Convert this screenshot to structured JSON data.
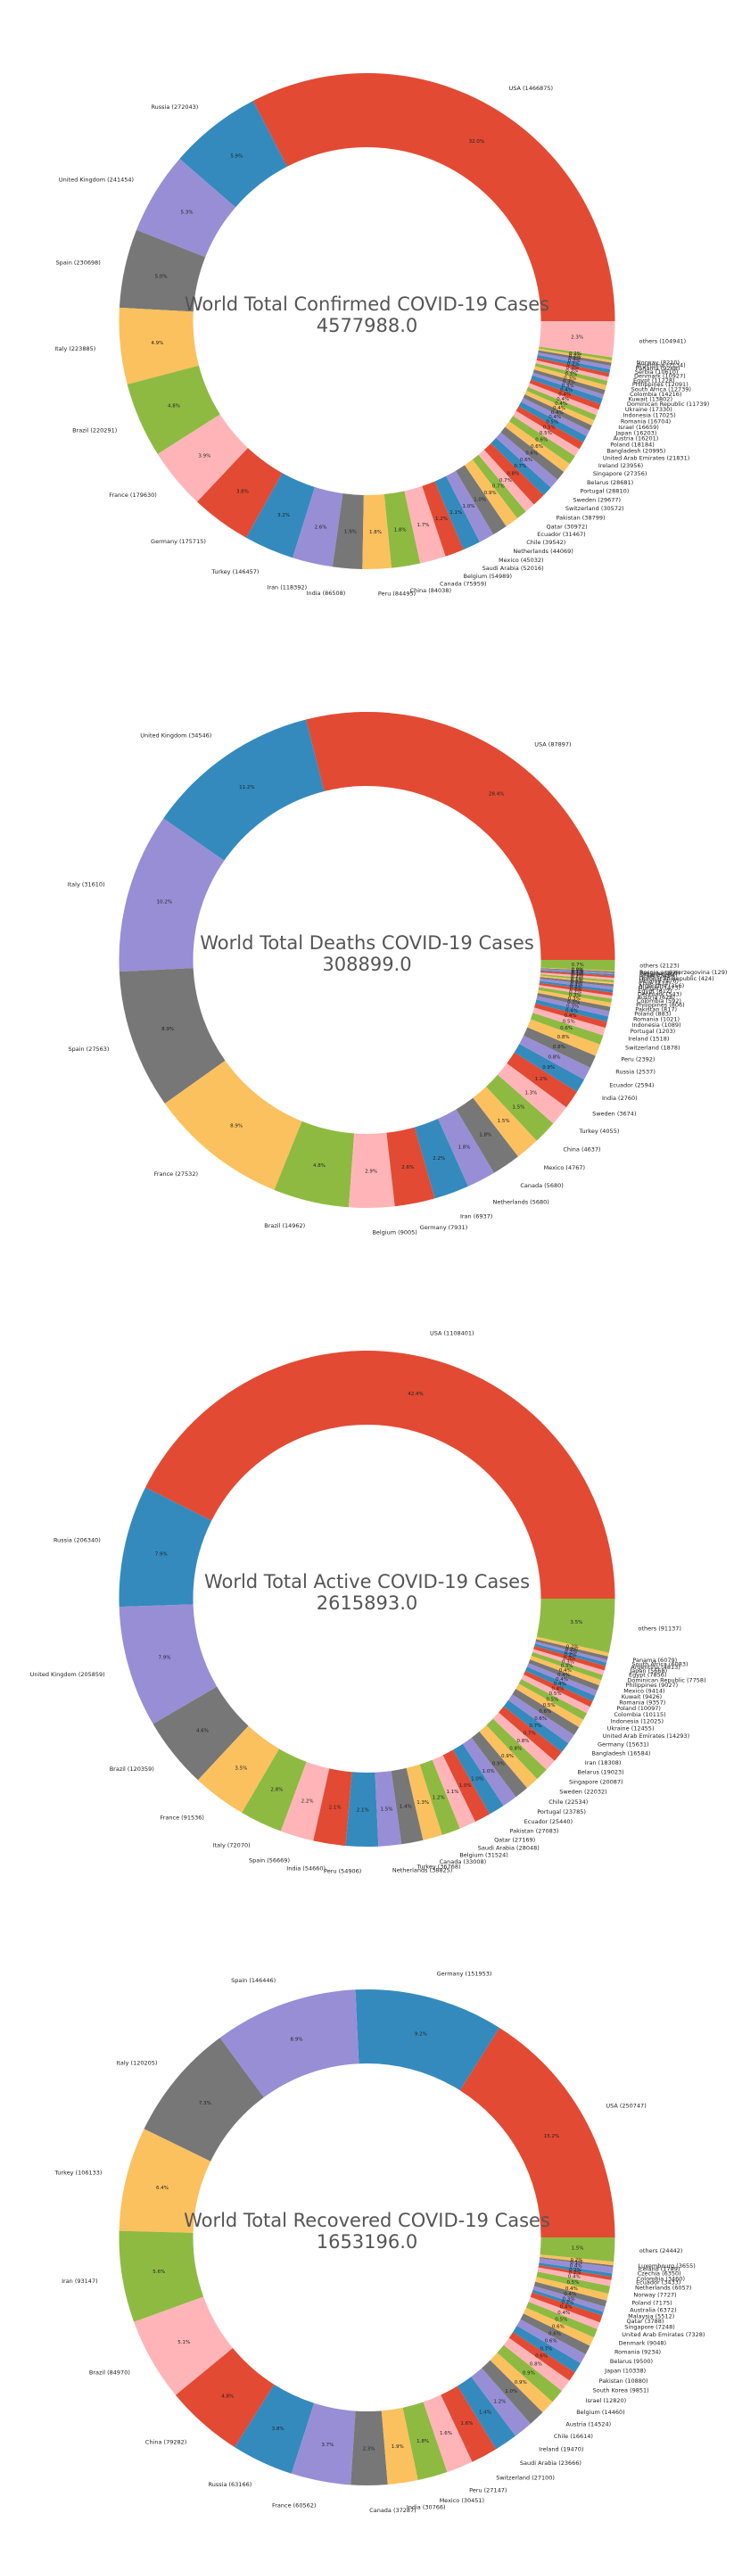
{
  "chart_data": [
    {
      "type": "pie",
      "donut": true,
      "title": "World Total Confirmed COVID-19 Cases",
      "total": "4577988.0",
      "slices": [
        {
          "label": "USA (1466875)",
          "value": 1466875,
          "pct": "32.0%"
        },
        {
          "label": "Russia (272043)",
          "value": 272043,
          "pct": "5.9%"
        },
        {
          "label": "United Kingdom (241454)",
          "value": 241454,
          "pct": "5.3%"
        },
        {
          "label": "Spain (230698)",
          "value": 230698,
          "pct": "5.0%"
        },
        {
          "label": "Italy (223885)",
          "value": 223885,
          "pct": "4.9%"
        },
        {
          "label": "Brazil (220291)",
          "value": 220291,
          "pct": "4.8%"
        },
        {
          "label": "France (179630)",
          "value": 179630,
          "pct": "3.9%"
        },
        {
          "label": "Germany (175715)",
          "value": 175715,
          "pct": "3.8%"
        },
        {
          "label": "Turkey (146457)",
          "value": 146457,
          "pct": "3.2%"
        },
        {
          "label": "Iran (118392)",
          "value": 118392,
          "pct": "2.6%"
        },
        {
          "label": "India (86508)",
          "value": 86508,
          "pct": "1.9%"
        },
        {
          "label": "Peru (84495)",
          "value": 84495,
          "pct": "1.8%"
        },
        {
          "label": "China (84038)",
          "value": 84038,
          "pct": "1.8%"
        },
        {
          "label": "Canada (75959)",
          "value": 75959,
          "pct": "1.7%"
        },
        {
          "label": "Belgium (54989)",
          "value": 54989,
          "pct": "1.2%"
        },
        {
          "label": "Saudi Arabia (52016)",
          "value": 52016,
          "pct": "1.1%"
        },
        {
          "label": "Mexico (45032)",
          "value": 45032,
          "pct": "1.0%"
        },
        {
          "label": "Netherlands (44069)",
          "value": 44069,
          "pct": "1.0%"
        },
        {
          "label": "Chile (39542)",
          "value": 39542,
          "pct": "0.9%"
        },
        {
          "label": "Ecuador (31467)",
          "value": 31467,
          "pct": "0.7%"
        },
        {
          "label": "Qatar (30972)",
          "value": 30972,
          "pct": "0.7%"
        },
        {
          "label": "Pakistan (38799)",
          "value": 38799,
          "pct": "0.8%"
        },
        {
          "label": "Switzerland (30572)",
          "value": 30572,
          "pct": "0.7%"
        },
        {
          "label": "Sweden (29677)",
          "value": 29677,
          "pct": "0.6%"
        },
        {
          "label": "Portugal (28810)",
          "value": 28810,
          "pct": "0.6%"
        },
        {
          "label": "Belarus (28681)",
          "value": 28681,
          "pct": "0.6%"
        },
        {
          "label": "Singapore (27356)",
          "value": 27356,
          "pct": "0.6%"
        },
        {
          "label": "Ireland (23956)",
          "value": 23956,
          "pct": "0.5%"
        },
        {
          "label": "United Arab Emirates (21831)",
          "value": 21831,
          "pct": "0.5%"
        },
        {
          "label": "Bangladesh (20995)",
          "value": 20995,
          "pct": "0.5%"
        },
        {
          "label": "Poland (18184)",
          "value": 18184,
          "pct": "0.4%"
        },
        {
          "label": "Austria (16201)",
          "value": 16201,
          "pct": "0.4%"
        },
        {
          "label": "Japan (16203)",
          "value": 16203,
          "pct": "0.4%"
        },
        {
          "label": "Israel (16659)",
          "value": 16659,
          "pct": "0.4%"
        },
        {
          "label": "Romania (16704)",
          "value": 16704,
          "pct": "0.4%"
        },
        {
          "label": "Indonesia (17025)",
          "value": 17025,
          "pct": "0.4%"
        },
        {
          "label": "Ukraine (17330)",
          "value": 17330,
          "pct": "0.4%"
        },
        {
          "label": "Dominican Republic (11739)",
          "value": 11739,
          "pct": "0.3%"
        },
        {
          "label": "Kuwait (13802)",
          "value": 13802,
          "pct": "0.3%"
        },
        {
          "label": "Colombia (14216)",
          "value": 14216,
          "pct": "0.3%"
        },
        {
          "label": "South Africa (12739)",
          "value": 12739,
          "pct": "0.3%"
        },
        {
          "label": "Philippines (12091)",
          "value": 12091,
          "pct": "0.3%"
        },
        {
          "label": "Egypt (11228)",
          "value": 11228,
          "pct": "0.2%"
        },
        {
          "label": "Denmark (10927)",
          "value": 10927,
          "pct": "0.2%"
        },
        {
          "label": "Serbia (10610)",
          "value": 10610,
          "pct": "0.2%"
        },
        {
          "label": "Panama (9268)",
          "value": 9268,
          "pct": "0.2%"
        },
        {
          "label": "Argentina (7134)",
          "value": 7134,
          "pct": "0.2%"
        },
        {
          "label": "Norway (8210)",
          "value": 8210,
          "pct": "0.2%"
        },
        {
          "label": "others (104941)",
          "value": 104941,
          "pct": "2.3%"
        }
      ]
    },
    {
      "type": "pie",
      "donut": true,
      "title": "World Total Deaths COVID-19 Cases",
      "total": "308899.0",
      "slices": [
        {
          "label": "USA (87897)",
          "value": 87897,
          "pct": "28.4%"
        },
        {
          "label": "United Kingdom (34546)",
          "value": 34546,
          "pct": "11.2%"
        },
        {
          "label": "Italy (31610)",
          "value": 31610,
          "pct": "10.2%"
        },
        {
          "label": "Spain (27563)",
          "value": 27563,
          "pct": "8.9%"
        },
        {
          "label": "France (27532)",
          "value": 27532,
          "pct": "8.9%"
        },
        {
          "label": "Brazil (14962)",
          "value": 14962,
          "pct": "4.8%"
        },
        {
          "label": "Belgium (9005)",
          "value": 9005,
          "pct": "2.9%"
        },
        {
          "label": "Germany (7931)",
          "value": 7931,
          "pct": "2.6%"
        },
        {
          "label": "Iran (6937)",
          "value": 6937,
          "pct": "2.2%"
        },
        {
          "label": "Netherlands (5680)",
          "value": 5680,
          "pct": "1.8%"
        },
        {
          "label": "Canada (5680)",
          "value": 5680,
          "pct": "1.8%"
        },
        {
          "label": "Mexico (4767)",
          "value": 4767,
          "pct": "1.5%"
        },
        {
          "label": "China (4637)",
          "value": 4637,
          "pct": "1.5%"
        },
        {
          "label": "Turkey (4055)",
          "value": 4055,
          "pct": "1.3%"
        },
        {
          "label": "Sweden (3674)",
          "value": 3674,
          "pct": "1.2%"
        },
        {
          "label": "India (2760)",
          "value": 2760,
          "pct": "0.9%"
        },
        {
          "label": "Ecuador (2594)",
          "value": 2594,
          "pct": "0.8%"
        },
        {
          "label": "Russia (2537)",
          "value": 2537,
          "pct": "0.8%"
        },
        {
          "label": "Peru (2392)",
          "value": 2392,
          "pct": "0.8%"
        },
        {
          "label": "Switzerland (1878)",
          "value": 1878,
          "pct": "0.6%"
        },
        {
          "label": "Ireland (1518)",
          "value": 1518,
          "pct": "0.5%"
        },
        {
          "label": "Portugal (1203)",
          "value": 1203,
          "pct": "0.4%"
        },
        {
          "label": "Indonesia (1089)",
          "value": 1089,
          "pct": "0.4%"
        },
        {
          "label": "Romania (1021)",
          "value": 1021,
          "pct": "0.3%"
        },
        {
          "label": "Poland (883)",
          "value": 883,
          "pct": "0.3%"
        },
        {
          "label": "Pakistan (817)",
          "value": 817,
          "pct": "0.3%"
        },
        {
          "label": "Philippines (806)",
          "value": 806,
          "pct": "0.3%"
        },
        {
          "label": "Colombia (592)",
          "value": 592,
          "pct": "0.2%"
        },
        {
          "label": "Austria (628)",
          "value": 628,
          "pct": "0.2%"
        },
        {
          "label": "Denmark (543)",
          "value": 543,
          "pct": "0.2%"
        },
        {
          "label": "Egypt (612)",
          "value": 612,
          "pct": "0.2%"
        },
        {
          "label": "Hungary (473)",
          "value": 473,
          "pct": "0.2%"
        },
        {
          "label": "Argentina (356)",
          "value": 356,
          "pct": "0.1%"
        },
        {
          "label": "Chile (414)",
          "value": 414,
          "pct": "0.1%"
        },
        {
          "label": "Ukraine (476)",
          "value": 476,
          "pct": "0.2%"
        },
        {
          "label": "Dominican Republic (424)",
          "value": 424,
          "pct": "0.1%"
        },
        {
          "label": "Israel (264)",
          "value": 264,
          "pct": "0.1%"
        },
        {
          "label": "Finland (284)",
          "value": 284,
          "pct": "0.1%"
        },
        {
          "label": "Panama (269)",
          "value": 269,
          "pct": "0.1%"
        },
        {
          "label": "Bosnia and Herzegovina (129)",
          "value": 129,
          "pct": "0.0%"
        },
        {
          "label": "others (2123)",
          "value": 2123,
          "pct": "0.7%"
        }
      ]
    },
    {
      "type": "pie",
      "donut": true,
      "title": "World Total Active COVID-19 Cases",
      "total": "2615893.0",
      "slices": [
        {
          "label": "USA (1108401)",
          "value": 1108401,
          "pct": "42.4%"
        },
        {
          "label": "Russia (206340)",
          "value": 206340,
          "pct": "7.9%"
        },
        {
          "label": "United Kingdom (205859)",
          "value": 205859,
          "pct": "7.9%"
        },
        {
          "label": "Brazil (120359)",
          "value": 120359,
          "pct": "4.6%"
        },
        {
          "label": "France (91536)",
          "value": 91536,
          "pct": "3.5%"
        },
        {
          "label": "Italy (72070)",
          "value": 72070,
          "pct": "2.8%"
        },
        {
          "label": "Spain (56669)",
          "value": 56669,
          "pct": "2.2%"
        },
        {
          "label": "India (54660)",
          "value": 54660,
          "pct": "2.1%"
        },
        {
          "label": "Peru (54906)",
          "value": 54906,
          "pct": "2.1%"
        },
        {
          "label": "Netherlands (38825)",
          "value": 38825,
          "pct": "1.5%"
        },
        {
          "label": "Turkey (36768)",
          "value": 36768,
          "pct": "1.4%"
        },
        {
          "label": "Canada (33008)",
          "value": 33008,
          "pct": "1.3%"
        },
        {
          "label": "Belgium (31524)",
          "value": 31524,
          "pct": "1.2%"
        },
        {
          "label": "Saudi Arabia (28048)",
          "value": 28048,
          "pct": "1.1%"
        },
        {
          "label": "Qatar (27169)",
          "value": 27169,
          "pct": "1.0%"
        },
        {
          "label": "Pakistan (27083)",
          "value": 27083,
          "pct": "1.0%"
        },
        {
          "label": "Ecuador (25440)",
          "value": 25440,
          "pct": "1.0%"
        },
        {
          "label": "Portugal (23785)",
          "value": 23785,
          "pct": "0.9%"
        },
        {
          "label": "Chile (22534)",
          "value": 22534,
          "pct": "0.9%"
        },
        {
          "label": "Sweden (22032)",
          "value": 22032,
          "pct": "0.8%"
        },
        {
          "label": "Singapore (20087)",
          "value": 20087,
          "pct": "0.8%"
        },
        {
          "label": "Belarus (19023)",
          "value": 19023,
          "pct": "0.7%"
        },
        {
          "label": "Iran (18308)",
          "value": 18308,
          "pct": "0.7%"
        },
        {
          "label": "Bangladesh (16584)",
          "value": 16584,
          "pct": "0.6%"
        },
        {
          "label": "Germany (15631)",
          "value": 15631,
          "pct": "0.6%"
        },
        {
          "label": "United Arab Emirates (14293)",
          "value": 14293,
          "pct": "0.5%"
        },
        {
          "label": "Ukraine (12455)",
          "value": 12455,
          "pct": "0.5%"
        },
        {
          "label": "Indonesia (12025)",
          "value": 12025,
          "pct": "0.5%"
        },
        {
          "label": "Colombia (10115)",
          "value": 10115,
          "pct": "0.4%"
        },
        {
          "label": "Poland (10097)",
          "value": 10097,
          "pct": "0.4%"
        },
        {
          "label": "Romania (9357)",
          "value": 9357,
          "pct": "0.4%"
        },
        {
          "label": "Kuwait (9426)",
          "value": 9426,
          "pct": "0.4%"
        },
        {
          "label": "Mexico (9414)",
          "value": 9414,
          "pct": "0.4%"
        },
        {
          "label": "Philippines (9027)",
          "value": 9027,
          "pct": "0.3%"
        },
        {
          "label": "Dominican Republic (7758)",
          "value": 7758,
          "pct": "0.3%"
        },
        {
          "label": "Egypt (7856)",
          "value": 7856,
          "pct": "0.3%"
        },
        {
          "label": "Japan (5668)",
          "value": 5668,
          "pct": "0.2%"
        },
        {
          "label": "Argentina (4813)",
          "value": 4813,
          "pct": "0.2%"
        },
        {
          "label": "South Africa (6083)",
          "value": 6083,
          "pct": "0.2%"
        },
        {
          "label": "Panama (6079)",
          "value": 6079,
          "pct": "0.2%"
        },
        {
          "label": "others (91137)",
          "value": 91137,
          "pct": "3.5%"
        }
      ]
    },
    {
      "type": "pie",
      "donut": true,
      "title": "World Total Recovered COVID-19 Cases",
      "total": "1653196.0",
      "slices": [
        {
          "label": "USA (250747)",
          "value": 250747,
          "pct": "15.2%"
        },
        {
          "label": "Germany (151953)",
          "value": 151953,
          "pct": "9.2%"
        },
        {
          "label": "Spain (146446)",
          "value": 146446,
          "pct": "8.9%"
        },
        {
          "label": "Italy (120205)",
          "value": 120205,
          "pct": "7.3%"
        },
        {
          "label": "Turkey (106133)",
          "value": 106133,
          "pct": "6.4%"
        },
        {
          "label": "Iran (93147)",
          "value": 93147,
          "pct": "5.6%"
        },
        {
          "label": "Brazil (84970)",
          "value": 84970,
          "pct": "5.1%"
        },
        {
          "label": "China (79282)",
          "value": 79282,
          "pct": "4.8%"
        },
        {
          "label": "Russia (63166)",
          "value": 63166,
          "pct": "3.8%"
        },
        {
          "label": "France (60562)",
          "value": 60562,
          "pct": "3.7%"
        },
        {
          "label": "Canada (37287)",
          "value": 37287,
          "pct": "2.3%"
        },
        {
          "label": "India (30766)",
          "value": 30766,
          "pct": "1.9%"
        },
        {
          "label": "Mexico (30451)",
          "value": 30451,
          "pct": "1.8%"
        },
        {
          "label": "Peru (27147)",
          "value": 27147,
          "pct": "1.6%"
        },
        {
          "label": "Switzerland (27100)",
          "value": 27100,
          "pct": "1.6%"
        },
        {
          "label": "Saudi Arabia (23666)",
          "value": 23666,
          "pct": "1.4%"
        },
        {
          "label": "Ireland (19470)",
          "value": 19470,
          "pct": "1.2%"
        },
        {
          "label": "Chile (16614)",
          "value": 16614,
          "pct": "1.0%"
        },
        {
          "label": "Austria (14524)",
          "value": 14524,
          "pct": "0.9%"
        },
        {
          "label": "Belgium (14460)",
          "value": 14460,
          "pct": "0.9%"
        },
        {
          "label": "Israel (12820)",
          "value": 12820,
          "pct": "0.8%"
        },
        {
          "label": "South Korea (9851)",
          "value": 9851,
          "pct": "0.6%"
        },
        {
          "label": "Pakistan (10880)",
          "value": 10880,
          "pct": "0.7%"
        },
        {
          "label": "Japan (10338)",
          "value": 10338,
          "pct": "0.6%"
        },
        {
          "label": "Belarus (9500)",
          "value": 9500,
          "pct": "0.6%"
        },
        {
          "label": "Romania (9234)",
          "value": 9234,
          "pct": "0.6%"
        },
        {
          "label": "Denmark (9048)",
          "value": 9048,
          "pct": "0.5%"
        },
        {
          "label": "United Arab Emirates (7328)",
          "value": 7328,
          "pct": "0.4%"
        },
        {
          "label": "Singapore (7248)",
          "value": 7248,
          "pct": "0.4%"
        },
        {
          "label": "Qatar (3788)",
          "value": 3788,
          "pct": "0.2%"
        },
        {
          "label": "Malaysia (5512)",
          "value": 5512,
          "pct": "0.3%"
        },
        {
          "label": "Australia (6372)",
          "value": 6372,
          "pct": "0.4%"
        },
        {
          "label": "Poland (7175)",
          "value": 7175,
          "pct": "0.4%"
        },
        {
          "label": "Norway (7727)",
          "value": 7727,
          "pct": "0.5%"
        },
        {
          "label": "Netherlands (6057)",
          "value": 6057,
          "pct": "0.4%"
        },
        {
          "label": "Ecuador (3433)",
          "value": 3433,
          "pct": "0.2%"
        },
        {
          "label": "Colombia (3460)",
          "value": 3460,
          "pct": "0.2%"
        },
        {
          "label": "Czechia (6350)",
          "value": 6350,
          "pct": "0.4%"
        },
        {
          "label": "Iceland (1789)",
          "value": 1789,
          "pct": "0.1%"
        },
        {
          "label": "Luxembourg (3655)",
          "value": 3655,
          "pct": "0.2%"
        },
        {
          "label": "others (24442)",
          "value": 24442,
          "pct": "1.5%"
        }
      ]
    }
  ],
  "colors": [
    "#E24A33",
    "#348ABD",
    "#988ED5",
    "#777777",
    "#FBC15E",
    "#8EBA42",
    "#FFB5B8"
  ]
}
